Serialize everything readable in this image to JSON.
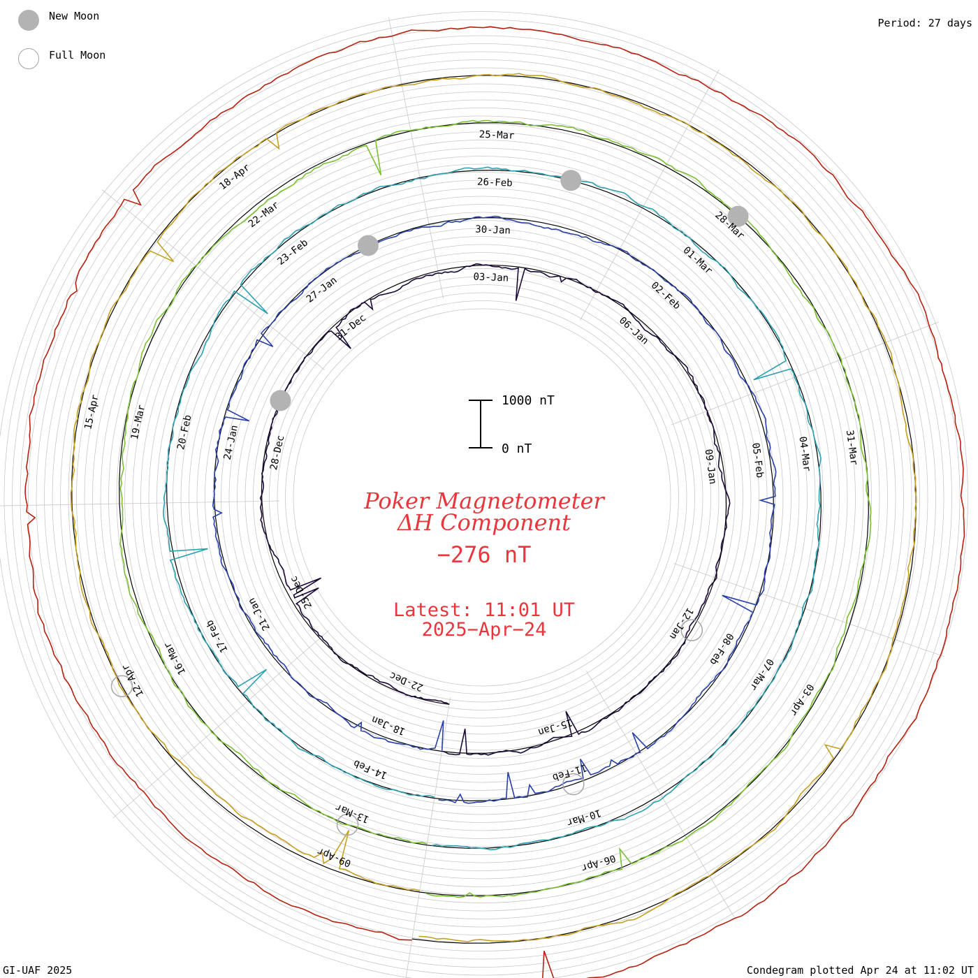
{
  "legend": {
    "new_moon_label": "New Moon",
    "full_moon_label": "Full Moon",
    "new_moon_color": "#b3b3b3",
    "full_moon_color": "#a6a6a6"
  },
  "header": {
    "period_text": "Period: 27 days"
  },
  "scale_bar": {
    "top_label": "1000 nT",
    "bottom_label": "0 nT"
  },
  "center": {
    "title_line1": "Poker Magnetometer",
    "title_line2": "ΔH Component",
    "current_value": "−276 nT",
    "latest_line1": "Latest: 11:01 UT",
    "latest_line2": "2025−Apr−24",
    "color": "#e8363c"
  },
  "footer": {
    "left_text": "GI-UAF 2025",
    "right_text": "Condegram plotted Apr 24 at 11:02 UT"
  },
  "chart_data": {
    "type": "line",
    "chart_kind": "condegram spiral",
    "period_days": 27,
    "scale_nT": [
      0,
      1000
    ],
    "date_labels": [
      {
        "label": "22-Dec",
        "ring": 0
      },
      {
        "label": "25-Dec",
        "ring": 0
      },
      {
        "label": "28-Dec",
        "ring": 0
      },
      {
        "label": "31-Dec",
        "ring": 0
      },
      {
        "label": "03-Jan",
        "ring": 0
      },
      {
        "label": "06-Jan",
        "ring": 0
      },
      {
        "label": "09-Jan",
        "ring": 0
      },
      {
        "label": "12-Jan",
        "ring": 0
      },
      {
        "label": "15-Jan",
        "ring": 0
      },
      {
        "label": "18-Jan",
        "ring": 1
      },
      {
        "label": "21-Jan",
        "ring": 1
      },
      {
        "label": "24-Jan",
        "ring": 1
      },
      {
        "label": "27-Jan",
        "ring": 1
      },
      {
        "label": "30-Jan",
        "ring": 1
      },
      {
        "label": "02-Feb",
        "ring": 1
      },
      {
        "label": "05-Feb",
        "ring": 1
      },
      {
        "label": "08-Feb",
        "ring": 1
      },
      {
        "label": "11-Feb",
        "ring": 1
      },
      {
        "label": "14-Feb",
        "ring": 2
      },
      {
        "label": "17-Feb",
        "ring": 2
      },
      {
        "label": "20-Feb",
        "ring": 2
      },
      {
        "label": "23-Feb",
        "ring": 2
      },
      {
        "label": "26-Feb",
        "ring": 2
      },
      {
        "label": "01-Mar",
        "ring": 2
      },
      {
        "label": "04-Mar",
        "ring": 2
      },
      {
        "label": "07-Mar",
        "ring": 2
      },
      {
        "label": "10-Mar",
        "ring": 2
      },
      {
        "label": "13-Mar",
        "ring": 3
      },
      {
        "label": "16-Mar",
        "ring": 3
      },
      {
        "label": "19-Mar",
        "ring": 3
      },
      {
        "label": "22-Mar",
        "ring": 3
      },
      {
        "label": "25-Mar",
        "ring": 3
      },
      {
        "label": "28-Mar",
        "ring": 3
      },
      {
        "label": "31-Mar",
        "ring": 3
      },
      {
        "label": "03-Apr",
        "ring": 3
      },
      {
        "label": "06-Apr",
        "ring": 3
      },
      {
        "label": "09-Apr",
        "ring": 4
      },
      {
        "label": "12-Apr",
        "ring": 4
      },
      {
        "label": "15-Apr",
        "ring": 4
      },
      {
        "label": "18-Apr",
        "ring": 4
      }
    ],
    "moon_phases": [
      {
        "type": "new",
        "date": "30-Dec"
      },
      {
        "type": "new",
        "date": "29-Jan"
      },
      {
        "type": "new",
        "date": "28-Feb"
      },
      {
        "type": "new",
        "date": "29-Mar"
      },
      {
        "type": "full",
        "date": "13-Jan"
      },
      {
        "type": "full",
        "date": "12-Feb"
      },
      {
        "type": "full",
        "date": "14-Mar"
      },
      {
        "type": "full",
        "date": "13-Apr"
      }
    ],
    "series": [
      {
        "color": "#1a0a3a",
        "approx_start": "20-Dec",
        "end_day": 27
      },
      {
        "color": "#2840a8",
        "start_day": 27,
        "end_day": 54
      },
      {
        "color": "#2aa0b0",
        "start_day": 54,
        "end_day": 81
      },
      {
        "color": "#7ac030",
        "start_day": 81,
        "end_day": 108
      },
      {
        "color": "#c8a020",
        "start_day": 108,
        "end_day": 135
      },
      {
        "color": "#b82010",
        "start_day": 135,
        "end_day": 126.5
      }
    ]
  }
}
